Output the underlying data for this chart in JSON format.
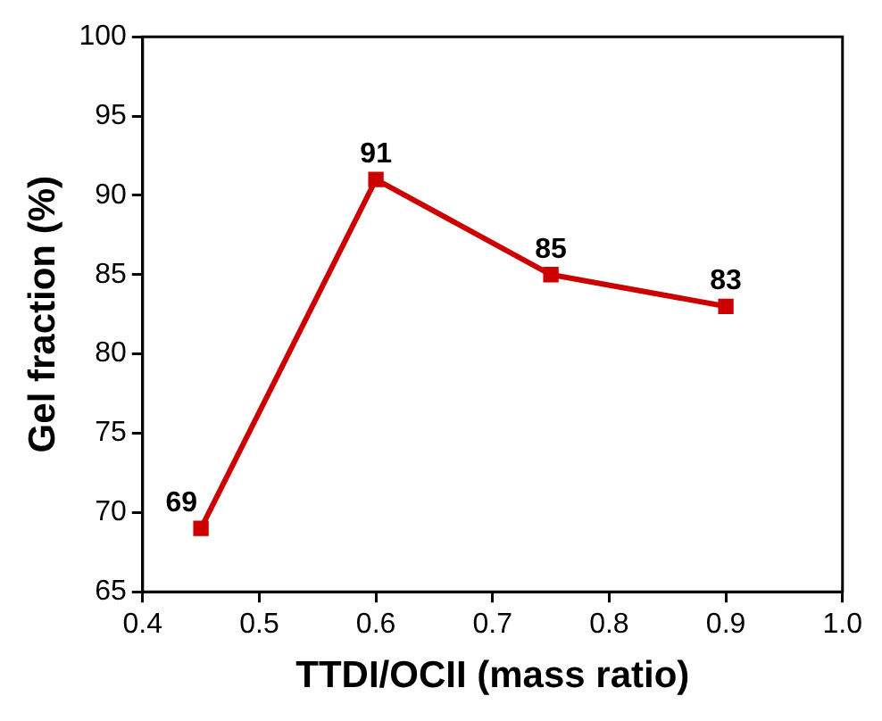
{
  "chart_data": {
    "type": "line",
    "xlabel": "TTDI/OCII (mass ratio)",
    "ylabel": "Gel fraction (%)",
    "x": [
      0.45,
      0.6,
      0.75,
      0.9
    ],
    "series": [
      {
        "color": "#cc0000",
        "values": [
          69,
          91,
          85,
          83
        ]
      }
    ],
    "xlim": [
      0.4,
      1.0
    ],
    "xticks": [
      0.4,
      0.5,
      0.6,
      0.7,
      0.8,
      0.9,
      {
        "value": 1.0,
        "label": "1.0"
      }
    ],
    "ylim": [
      65,
      100
    ],
    "yticks": [
      65,
      70,
      75,
      80,
      85,
      90,
      95,
      100
    ],
    "marker": "square",
    "line_style": "solid",
    "data_labels": true,
    "grid": false,
    "legend": false
  }
}
